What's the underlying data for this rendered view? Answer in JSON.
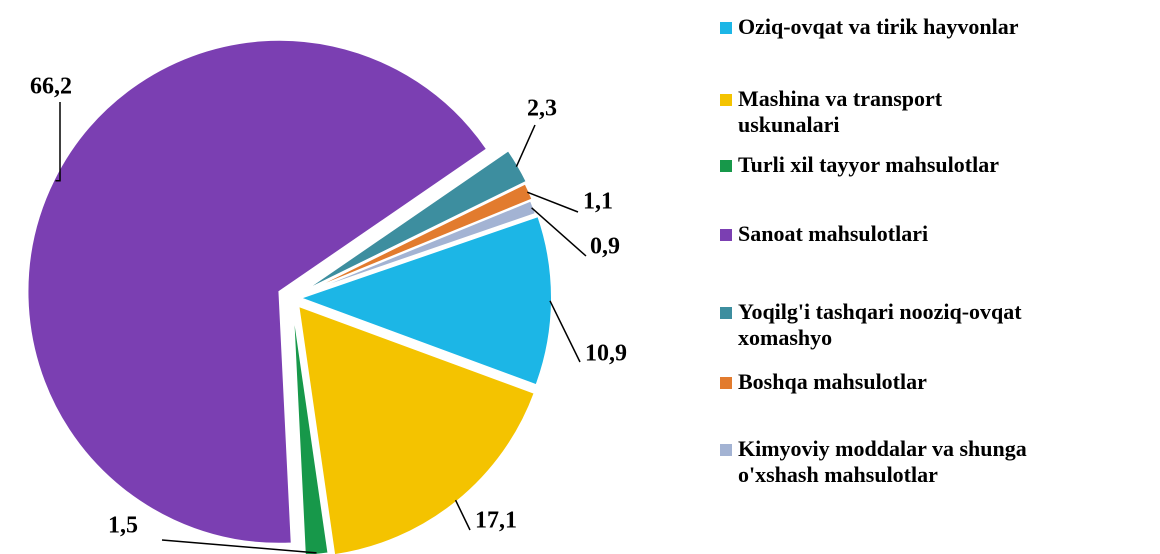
{
  "chart_data": {
    "type": "pie",
    "categories": [
      "Oziq-ovqat va tirik hayvonlar",
      "Mashina va transport uskunalari",
      "Turli xil tayyor mahsulotlar",
      "Sanoat mahsulotlari",
      "Yoqilg'i tashqari nooziq-ovqat xomashyo",
      "Boshqa mahsulotlar",
      "Kimyoviy moddalar va shunga o'xshash mahsulotlar"
    ],
    "values": [
      10.9,
      17.1,
      1.5,
      66.2,
      2.3,
      1.1,
      0.9
    ],
    "value_labels": [
      "10,9",
      "17,1",
      "1,5",
      "66,2",
      "2,3",
      "1,1",
      "0,9"
    ],
    "colors": [
      "#1cb6e6",
      "#f4c300",
      "#17984a",
      "#7b3fb2",
      "#3d8e9f",
      "#e27b2e",
      "#a3b3d3"
    ],
    "legend": "right"
  }
}
